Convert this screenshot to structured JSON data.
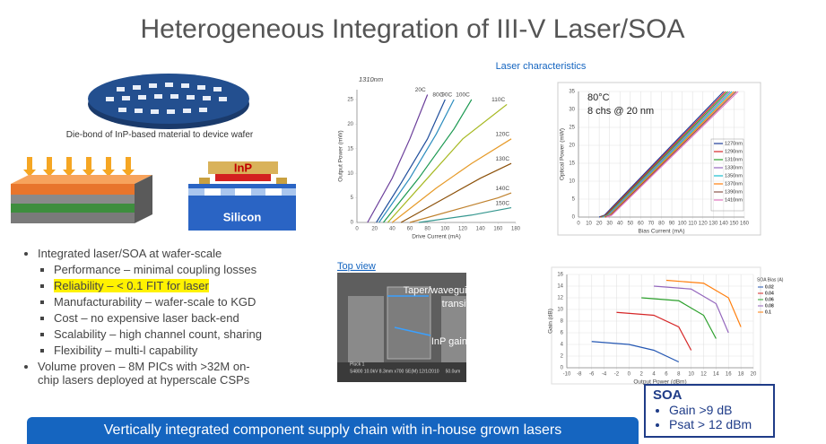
{
  "title": "Heterogeneous Integration of III-V Laser/SOA",
  "illustration": {
    "caption": "Die-bond of InP-based material to device wafer",
    "inp_label": "InP",
    "silicon_label": "Silicon"
  },
  "bullets": [
    {
      "text": "Integrated laser/SOA at wafer-scale",
      "sub": [
        "Performance – minimal coupling losses",
        "Reliability – < 0.1 FIT for laser",
        "Manufacturability – wafer-scale to KGD",
        "Cost – no expensive laser back-end",
        "Scalability – high channel count, sharing",
        "Flexibility – multi-l capability"
      ]
    },
    {
      "text": "Volume proven – 8M PICs with >32M on-chip lasers deployed at hyperscale CSPs",
      "sub": []
    }
  ],
  "banner": "Vertically integrated component supply chain with in-house grown lasers",
  "laser_section_label": "Laser characteristics",
  "charts": {
    "laser_li": {
      "type": "line",
      "annotation": "1310nm",
      "x_label": "Drive Current (mA)",
      "y_label": "Output Power (mW)",
      "xlim": [
        0,
        180
      ],
      "ylim": [
        0,
        27
      ],
      "xticks": [
        0,
        20,
        40,
        60,
        80,
        100,
        120,
        140,
        160,
        180
      ],
      "yticks": [
        0,
        5,
        10,
        15,
        20,
        25
      ],
      "grid": false,
      "series": [
        {
          "name": "20C",
          "color": "#6a3d9a",
          "x": [
            12,
            40,
            60,
            80
          ],
          "values": [
            0,
            9,
            17,
            26
          ]
        },
        {
          "name": "80C",
          "color": "#1f4e9c",
          "x": [
            22,
            50,
            80,
            100
          ],
          "values": [
            0,
            8,
            17,
            25
          ]
        },
        {
          "name": "90C",
          "color": "#2b8cbe",
          "x": [
            25,
            60,
            90,
            110
          ],
          "values": [
            0,
            9,
            18,
            25
          ]
        },
        {
          "name": "100C",
          "color": "#1a9850",
          "x": [
            30,
            70,
            110,
            130
          ],
          "values": [
            0,
            9,
            19,
            25
          ]
        },
        {
          "name": "110C",
          "color": "#a6b820",
          "x": [
            35,
            80,
            120,
            170
          ],
          "values": [
            0,
            9,
            17,
            24
          ]
        },
        {
          "name": "120C",
          "color": "#e69a28",
          "x": [
            40,
            90,
            130,
            175
          ],
          "values": [
            0,
            7,
            12,
            17
          ]
        },
        {
          "name": "130C",
          "color": "#8c510a",
          "x": [
            50,
            100,
            140,
            175
          ],
          "values": [
            0,
            5,
            9,
            12
          ]
        },
        {
          "name": "140C",
          "color": "#bf812d",
          "x": [
            60,
            120,
            160,
            175
          ],
          "values": [
            0,
            3,
            5,
            6
          ]
        },
        {
          "name": "150C",
          "color": "#35978f",
          "x": [
            70,
            130,
            175
          ],
          "values": [
            0,
            1.5,
            3
          ]
        }
      ]
    },
    "multichannel": {
      "type": "line",
      "annotation": [
        "80°C",
        "8 chs @ 20 nm"
      ],
      "x_label": "Bias Current  (mA)",
      "y_label": "Optical Power (mW)",
      "xlim": [
        0,
        160
      ],
      "ylim": [
        0,
        35
      ],
      "xticks": [
        0,
        10,
        20,
        30,
        40,
        50,
        60,
        70,
        80,
        90,
        100,
        110,
        120,
        130,
        140,
        150,
        160
      ],
      "yticks": [
        0,
        5,
        10,
        15,
        20,
        25,
        30,
        35
      ],
      "grid": true,
      "series": [
        {
          "name": "1270nm",
          "color": "#1f3d99",
          "x": [
            20,
            25,
            140
          ],
          "values": [
            0,
            0.5,
            35
          ]
        },
        {
          "name": "1290nm",
          "color": "#d62728",
          "x": [
            21,
            26,
            142
          ],
          "values": [
            0,
            0.5,
            35
          ]
        },
        {
          "name": "1310nm",
          "color": "#2ca02c",
          "x": [
            22,
            27,
            144
          ],
          "values": [
            0,
            0.5,
            35
          ]
        },
        {
          "name": "1330nm",
          "color": "#9467bd",
          "x": [
            23,
            28,
            146
          ],
          "values": [
            0,
            0.5,
            35
          ]
        },
        {
          "name": "1350nm",
          "color": "#17becf",
          "x": [
            24,
            29,
            148
          ],
          "values": [
            0,
            0.5,
            35
          ]
        },
        {
          "name": "1370nm",
          "color": "#ff7f0e",
          "x": [
            25,
            30,
            150
          ],
          "values": [
            0,
            0.5,
            35
          ]
        },
        {
          "name": "1390nm",
          "color": "#8c564b",
          "x": [
            26,
            31,
            152
          ],
          "values": [
            0,
            0.5,
            35
          ]
        },
        {
          "name": "1410nm",
          "color": "#e377c2",
          "x": [
            27,
            32,
            154
          ],
          "values": [
            0,
            0.5,
            35
          ]
        }
      ]
    },
    "soa_gain": {
      "type": "line",
      "legend_title": "SOA Bias (A)",
      "x_label": "Output Power (dBm)",
      "y_label": "Gain (dB)",
      "xlim": [
        -10,
        20
      ],
      "ylim": [
        0,
        16
      ],
      "xticks": [
        -10,
        -8,
        -6,
        -4,
        -2,
        0,
        2,
        4,
        6,
        8,
        10,
        12,
        14,
        16,
        18,
        20
      ],
      "yticks": [
        0,
        2,
        4,
        6,
        8,
        10,
        12,
        14,
        16
      ],
      "grid": true,
      "series": [
        {
          "name": "0.02",
          "color": "#2457b3",
          "x": [
            -6,
            0,
            4,
            8
          ],
          "values": [
            4.5,
            4,
            3,
            1
          ]
        },
        {
          "name": "0.04",
          "color": "#d62728",
          "x": [
            -2,
            4,
            8,
            10
          ],
          "values": [
            9.5,
            9,
            7,
            3
          ]
        },
        {
          "name": "0.06",
          "color": "#2ca02c",
          "x": [
            2,
            8,
            12,
            14
          ],
          "values": [
            12,
            11.5,
            9,
            5
          ]
        },
        {
          "name": "0.08",
          "color": "#9467bd",
          "x": [
            4,
            10,
            14,
            16
          ],
          "values": [
            14,
            13.5,
            11,
            6
          ]
        },
        {
          "name": "0.1",
          "color": "#ff7f0e",
          "x": [
            6,
            12,
            16,
            18
          ],
          "values": [
            15,
            14.5,
            12,
            7
          ]
        }
      ]
    }
  },
  "top_view": {
    "label": "Top view",
    "callout_taper": "Taper/waveguide transition",
    "callout_gain": "InP gain medium",
    "sem_corner": "Pluck 1",
    "sem_info": "S4800 10.0kV 8.3mm x700 SE(M) 12/1/2010",
    "sem_scale": "50.0um"
  },
  "soa_box": {
    "title": "SOA",
    "items": [
      "Gain >9 dB",
      "Psat > 12 dBm"
    ]
  }
}
